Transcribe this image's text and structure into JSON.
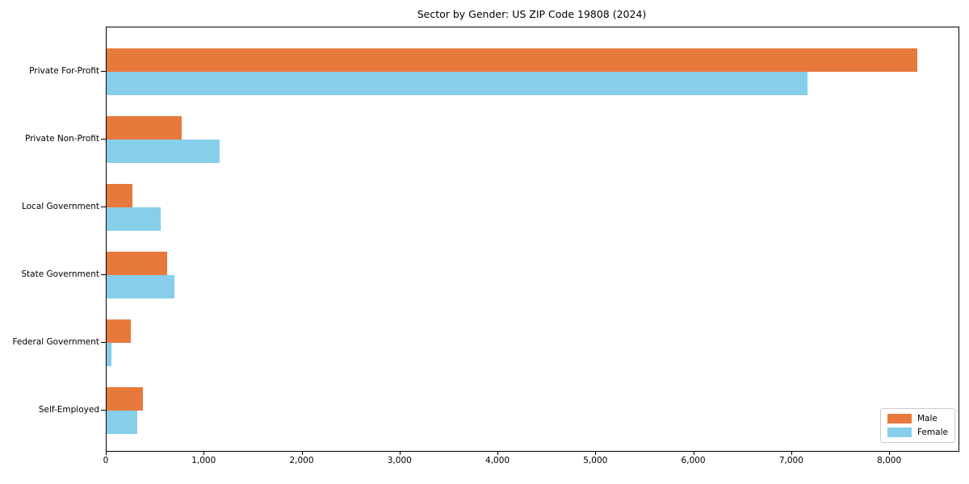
{
  "chart_data": {
    "type": "bar",
    "orientation": "horizontal",
    "title": "Sector by Gender: US ZIP Code 19808 (2024)",
    "categories": [
      "Private For-Profit",
      "Private Non-Profit",
      "Local Government",
      "State Government",
      "Federal Government",
      "Self-Employed"
    ],
    "series": [
      {
        "name": "Male",
        "color": "#e8793c",
        "values": [
          8280,
          770,
          260,
          620,
          245,
          370
        ]
      },
      {
        "name": "Female",
        "color": "#87ceeb",
        "values": [
          7160,
          1150,
          555,
          695,
          50,
          310
        ]
      }
    ],
    "xlim": [
      0,
      8700
    ],
    "x_ticks": [
      0,
      1000,
      2000,
      3000,
      4000,
      5000,
      6000,
      7000,
      8000
    ],
    "x_tick_labels": [
      "0",
      "1,000",
      "2,000",
      "3,000",
      "4,000",
      "5,000",
      "6,000",
      "7,000",
      "8,000"
    ],
    "ylabel": "",
    "xlabel": "",
    "grid": false,
    "legend_position": "lower right"
  }
}
